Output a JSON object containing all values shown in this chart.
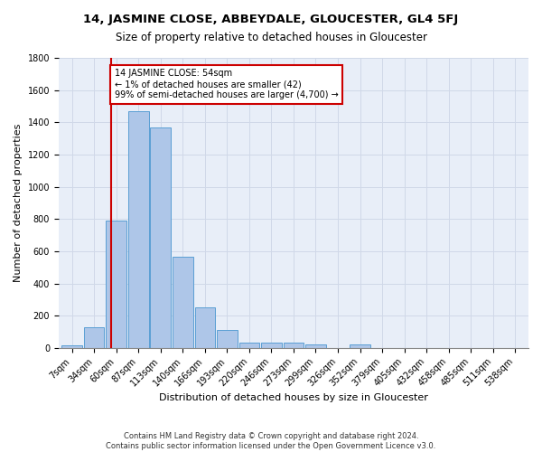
{
  "title": "14, JASMINE CLOSE, ABBEYDALE, GLOUCESTER, GL4 5FJ",
  "subtitle": "Size of property relative to detached houses in Gloucester",
  "xlabel": "Distribution of detached houses by size in Gloucester",
  "ylabel": "Number of detached properties",
  "categories": [
    "7sqm",
    "34sqm",
    "60sqm",
    "87sqm",
    "113sqm",
    "140sqm",
    "166sqm",
    "193sqm",
    "220sqm",
    "246sqm",
    "273sqm",
    "299sqm",
    "326sqm",
    "352sqm",
    "379sqm",
    "405sqm",
    "432sqm",
    "458sqm",
    "485sqm",
    "511sqm",
    "538sqm"
  ],
  "values": [
    15,
    130,
    790,
    1470,
    1370,
    565,
    250,
    110,
    35,
    30,
    30,
    20,
    0,
    20,
    0,
    0,
    0,
    0,
    0,
    0,
    0
  ],
  "bar_color": "#aec6e8",
  "bar_edge_color": "#5a9fd4",
  "grid_color": "#d0d8e8",
  "background_color": "#e8eef8",
  "red_line_color": "#cc0000",
  "annotation_text": "14 JASMINE CLOSE: 54sqm\n← 1% of detached houses are smaller (42)\n99% of semi-detached houses are larger (4,700) →",
  "annotation_box_color": "#cc0000",
  "footer_line1": "Contains HM Land Registry data © Crown copyright and database right 2024.",
  "footer_line2": "Contains public sector information licensed under the Open Government Licence v3.0.",
  "ylim": [
    0,
    1800
  ],
  "title_fontsize": 9.5,
  "subtitle_fontsize": 8.5,
  "tick_fontsize": 7,
  "ylabel_fontsize": 8,
  "xlabel_fontsize": 8,
  "footer_fontsize": 6
}
